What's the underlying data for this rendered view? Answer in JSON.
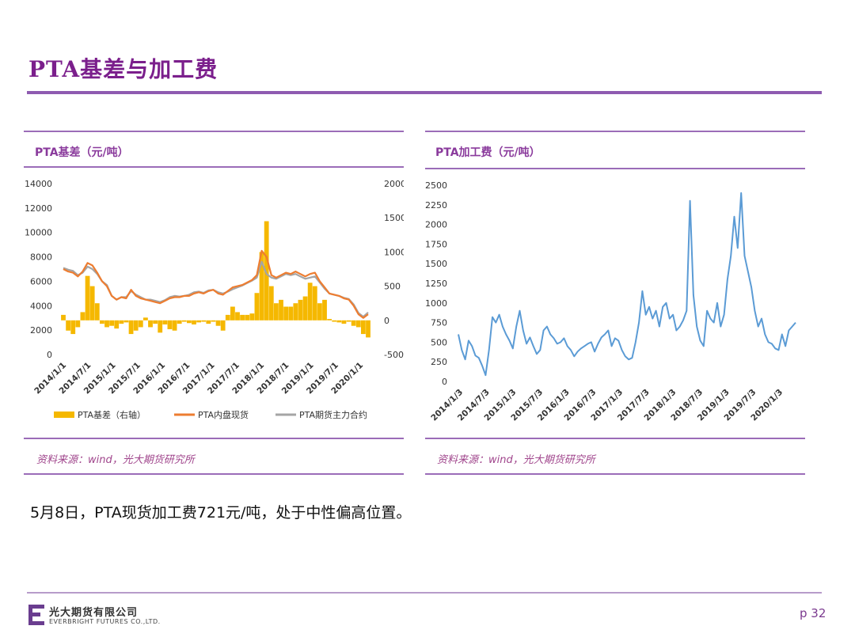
{
  "page": {
    "title": "PTA基差与加工费",
    "caption": "5月8日，PTA现货加工费721元/吨，处于中性偏高位置。",
    "footer": {
      "company_cn": "光大期货有限公司",
      "company_en": "EVERBRIGHT FUTURES CO.,LTD.",
      "page_number": "p 32"
    }
  },
  "colors": {
    "accent": "#7b1f8c",
    "basis_bar": "#f5b800",
    "spot": "#ed7d31",
    "futures": "#a5a5a5",
    "fee_line": "#5b9bd5"
  },
  "chart_data": [
    {
      "type": "bar+line",
      "title": "PTA基差（元/吨）",
      "source": "资料来源：wind，光大期货研究所",
      "ylim": [
        0,
        14000
      ],
      "y_ticks": [
        "14000",
        "12000",
        "10000",
        "8000",
        "6000",
        "4000",
        "2000",
        "0"
      ],
      "y2lim": [
        -500,
        2000
      ],
      "y2_ticks": [
        "2000",
        "1500",
        "1000",
        "500",
        "0",
        "-500"
      ],
      "x_ticks": [
        "2014/1/1",
        "2014/7/1",
        "2015/1/1",
        "2015/7/1",
        "2016/1/1",
        "2016/7/1",
        "2017/1/1",
        "2017/7/1",
        "2018/1/1",
        "2018/7/1",
        "2019/1/1",
        "2019/7/1",
        "2020/1/1"
      ],
      "legend": [
        "PTA基差（右轴）",
        "PTA内盘现货",
        "PTA期货主力合约"
      ],
      "legend_position": "bottom",
      "series": [
        {
          "name": "PTA基差（右轴）",
          "axis": "right",
          "values": [
            80,
            -150,
            -200,
            -100,
            120,
            650,
            500,
            250,
            -50,
            -100,
            -80,
            -120,
            -50,
            -30,
            -200,
            -150,
            -100,
            40,
            -100,
            -50,
            -180,
            -60,
            -130,
            -150,
            -50,
            -20,
            -40,
            -60,
            -30,
            -20,
            -50,
            -20,
            -80,
            -150,
            80,
            200,
            120,
            80,
            80,
            100,
            400,
            1000,
            1450,
            500,
            250,
            300,
            200,
            200,
            250,
            300,
            350,
            550,
            500,
            250,
            300,
            20,
            -20,
            -30,
            -50,
            -20,
            -80,
            -100,
            -200,
            -250
          ]
        },
        {
          "name": "PTA内盘现货",
          "axis": "left",
          "values": [
            7000,
            6800,
            6700,
            6400,
            6800,
            7500,
            7300,
            6700,
            6000,
            5600,
            4800,
            4500,
            4700,
            4600,
            5300,
            4800,
            4600,
            4500,
            4400,
            4300,
            4200,
            4400,
            4600,
            4700,
            4700,
            4800,
            4800,
            5000,
            5100,
            5000,
            5200,
            5300,
            5000,
            4900,
            5200,
            5500,
            5600,
            5700,
            5900,
            6100,
            6500,
            8500,
            8000,
            6500,
            6300,
            6500,
            6700,
            6600,
            6800,
            6600,
            6400,
            6600,
            6700,
            6000,
            5500,
            5000,
            4900,
            4800,
            4600,
            4500,
            4000,
            3300,
            3000,
            3300
          ]
        },
        {
          "name": "PTA期货主力合约",
          "axis": "left",
          "values": [
            7100,
            6950,
            6850,
            6500,
            6700,
            7200,
            7000,
            6600,
            6000,
            5700,
            4800,
            4500,
            4700,
            4700,
            5200,
            4900,
            4700,
            4500,
            4500,
            4400,
            4300,
            4450,
            4700,
            4800,
            4750,
            4800,
            4900,
            5100,
            5150,
            5050,
            5250,
            5300,
            5100,
            5000,
            5150,
            5350,
            5500,
            5650,
            5850,
            6050,
            6300,
            7600,
            6600,
            6300,
            6200,
            6400,
            6600,
            6500,
            6600,
            6400,
            6200,
            6300,
            6400,
            5900,
            5400,
            5000,
            4900,
            4800,
            4650,
            4550,
            4100,
            3400,
            3100,
            3450
          ]
        }
      ]
    },
    {
      "type": "line",
      "title": "PTA加工费（元/吨）",
      "source": "资料来源：wind，光大期货研究所",
      "ylim": [
        0,
        2500
      ],
      "y_ticks": [
        "2500",
        "2250",
        "2000",
        "1750",
        "1500",
        "1250",
        "1000",
        "750",
        "500",
        "250",
        "0"
      ],
      "x_ticks": [
        "2014/1/3",
        "2014/7/3",
        "2015/1/3",
        "2015/7/3",
        "2016/1/3",
        "2016/7/3",
        "2017/1/3",
        "2017/7/3",
        "2018/1/3",
        "2018/7/3",
        "2019/1/3",
        "2019/7/3",
        "2020/1/3"
      ],
      "series": [
        {
          "values": [
            600,
            400,
            280,
            520,
            450,
            330,
            300,
            200,
            80,
            400,
            820,
            750,
            850,
            700,
            600,
            520,
            420,
            700,
            900,
            650,
            480,
            560,
            450,
            350,
            400,
            650,
            700,
            600,
            550,
            480,
            500,
            550,
            450,
            400,
            320,
            380,
            420,
            450,
            480,
            500,
            380,
            480,
            560,
            600,
            650,
            450,
            550,
            520,
            400,
            320,
            280,
            300,
            500,
            750,
            1150,
            850,
            950,
            800,
            900,
            700,
            950,
            1000,
            800,
            850,
            650,
            700,
            780,
            900,
            2300,
            1100,
            700,
            520,
            450,
            900,
            800,
            750,
            1000,
            700,
            850,
            1300,
            1600,
            2100,
            1700,
            2400,
            1600,
            1400,
            1200,
            900,
            700,
            800,
            600,
            500,
            480,
            420,
            400,
            600,
            450,
            650,
            700,
            750
          ]
        }
      ]
    }
  ]
}
